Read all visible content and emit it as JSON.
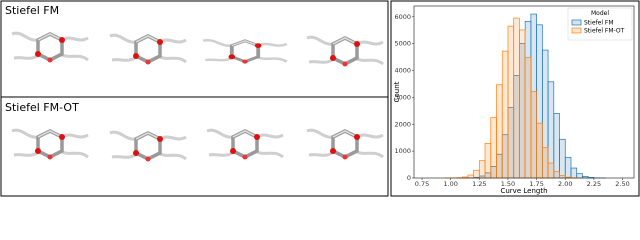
{
  "panels": [
    {
      "label": "Stiefel FM"
    },
    {
      "label": "Stiefel FM-OT"
    }
  ],
  "chart_data": {
    "type": "histogram",
    "x_label": "Curve Length",
    "y_label": "Count",
    "legend_title": "Model",
    "legend": "upper right",
    "bins": [
      0.9,
      0.95,
      1.0,
      1.05,
      1.1,
      1.15,
      1.2,
      1.25,
      1.3,
      1.35,
      1.4,
      1.45,
      1.5,
      1.55,
      1.6,
      1.65,
      1.7,
      1.75,
      1.8,
      1.85,
      1.9,
      1.95,
      2.0,
      2.05,
      2.1,
      2.15,
      2.2,
      2.25,
      2.3,
      2.35,
      2.4,
      2.45
    ],
    "series": [
      {
        "name": "Stiefel FM",
        "color": "#1f77b4",
        "values": [
          0,
          0,
          0,
          1,
          2,
          8,
          26,
          75,
          190,
          433,
          885,
          1610,
          2620,
          3810,
          5000,
          5830,
          6100,
          5700,
          4760,
          3580,
          2400,
          1440,
          770,
          370,
          160,
          61,
          21,
          6,
          2,
          0,
          0
        ]
      },
      {
        "name": "Stiefel FM-OT",
        "color": "#ff7f0e",
        "values": [
          0,
          1,
          3,
          11,
          38,
          111,
          288,
          645,
          1290,
          2250,
          3470,
          4720,
          5650,
          5950,
          5510,
          4490,
          3220,
          2040,
          1130,
          555,
          238,
          91,
          30,
          9,
          2,
          0,
          0,
          0,
          0,
          0,
          0
        ]
      }
    ],
    "xlim": [
      0.68,
      2.6
    ],
    "ylim": [
      0,
      6400
    ],
    "xticks": [
      0.75,
      {
        "value": 1.0,
        "label": "1.00"
      },
      1.25,
      {
        "value": 1.5,
        "label": "1.50"
      },
      1.75,
      {
        "value": 2.0,
        "label": "2.00"
      },
      2.25,
      {
        "value": 2.5,
        "label": "2.50"
      }
    ],
    "yticks": [
      0,
      1000,
      2000,
      3000,
      4000,
      5000,
      6000
    ]
  }
}
